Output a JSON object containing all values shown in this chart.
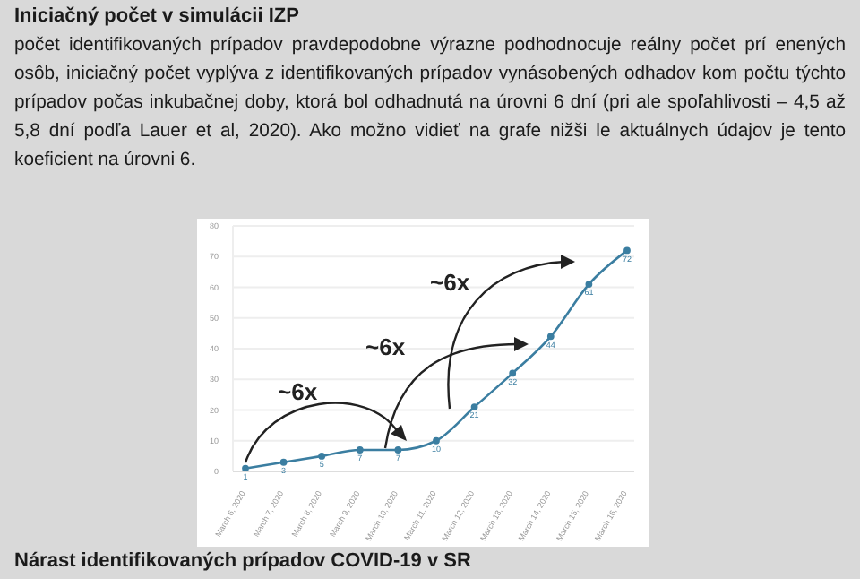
{
  "chart_data": {
    "type": "line",
    "title": "Iniciačný počet v simulácii IZP",
    "categories": [
      "March 6, 2020",
      "March 7, 2020",
      "March 8, 2020",
      "March 9, 2020",
      "March 10, 2020",
      "March 11, 2020",
      "March 12, 2020",
      "March 13, 2020",
      "March 14, 2020",
      "March 15, 2020",
      "March 16, 2020"
    ],
    "series": [
      {
        "color": "#3b7ea1",
        "values": [
          1,
          3,
          5,
          7,
          7,
          10,
          21,
          32,
          44,
          61,
          72
        ]
      }
    ],
    "ylim": [
      0,
      80
    ],
    "yticks": [
      0,
      10,
      20,
      30,
      40,
      50,
      60,
      70,
      80
    ],
    "grid": "y",
    "marker": "circle",
    "line_style": "solid",
    "data_labels": true,
    "annotations": [
      "počet identifikovaných prípadov pravdepodobne výrazne podhodnocuje reálny počet prí enených osôb, iniciačný počet vyplýva z identifikovaných prípadov vynásobených odhadov kom počtu týchto prípadov počas inkubačnej doby, ktorá bol odhadnutá na úrovni 6 dní (pri ale spoľahlivosti – 4,5 až 5,8 dní podľa Lauer et al, 2020). Ako možno vidieť na grafe nižši le aktuálnych údajov je tento koeficient na úrovni 6.",
      "~6x",
      "~6x",
      "~6x",
      "Nárast identifikovaných prípadov COVID-19 v SR"
    ]
  }
}
